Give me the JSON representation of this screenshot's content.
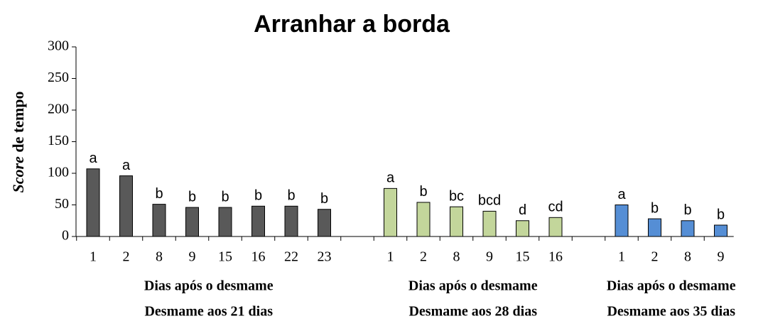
{
  "chart_data": {
    "type": "bar",
    "title": "Arranhar a borda",
    "y_label_italic": "Score",
    "y_label": "de tempo",
    "ylim": [
      0,
      300
    ],
    "yticks": [
      0,
      50,
      100,
      150,
      200,
      250,
      300
    ],
    "groups": [
      {
        "axis_label": "Dias após o desmame",
        "name": "Desmame aos 21 dias",
        "color": "#595959",
        "categories": [
          "1",
          "2",
          "8",
          "9",
          "15",
          "16",
          "22",
          "23"
        ],
        "values": [
          107,
          96,
          51,
          46,
          46,
          48,
          48,
          43
        ],
        "letters": [
          "a",
          "a",
          "b",
          "b",
          "b",
          "b",
          "b",
          "b"
        ]
      },
      {
        "axis_label": "Dias após o desmame",
        "name": "Desmame aos 28 dias",
        "color": "#c3d69b",
        "categories": [
          "1",
          "2",
          "8",
          "9",
          "15",
          "16"
        ],
        "values": [
          76,
          54,
          47,
          40,
          25,
          30
        ],
        "letters": [
          "a",
          "b",
          "bc",
          "bcd",
          "d",
          "cd"
        ]
      },
      {
        "axis_label": "Dias após o desmame",
        "name": "Desmame aos 35 dias",
        "color": "#558ed5",
        "categories": [
          "1",
          "2",
          "8",
          "9"
        ],
        "values": [
          50,
          28,
          25,
          18
        ],
        "letters": [
          "a",
          "b",
          "b",
          "b"
        ]
      }
    ]
  }
}
